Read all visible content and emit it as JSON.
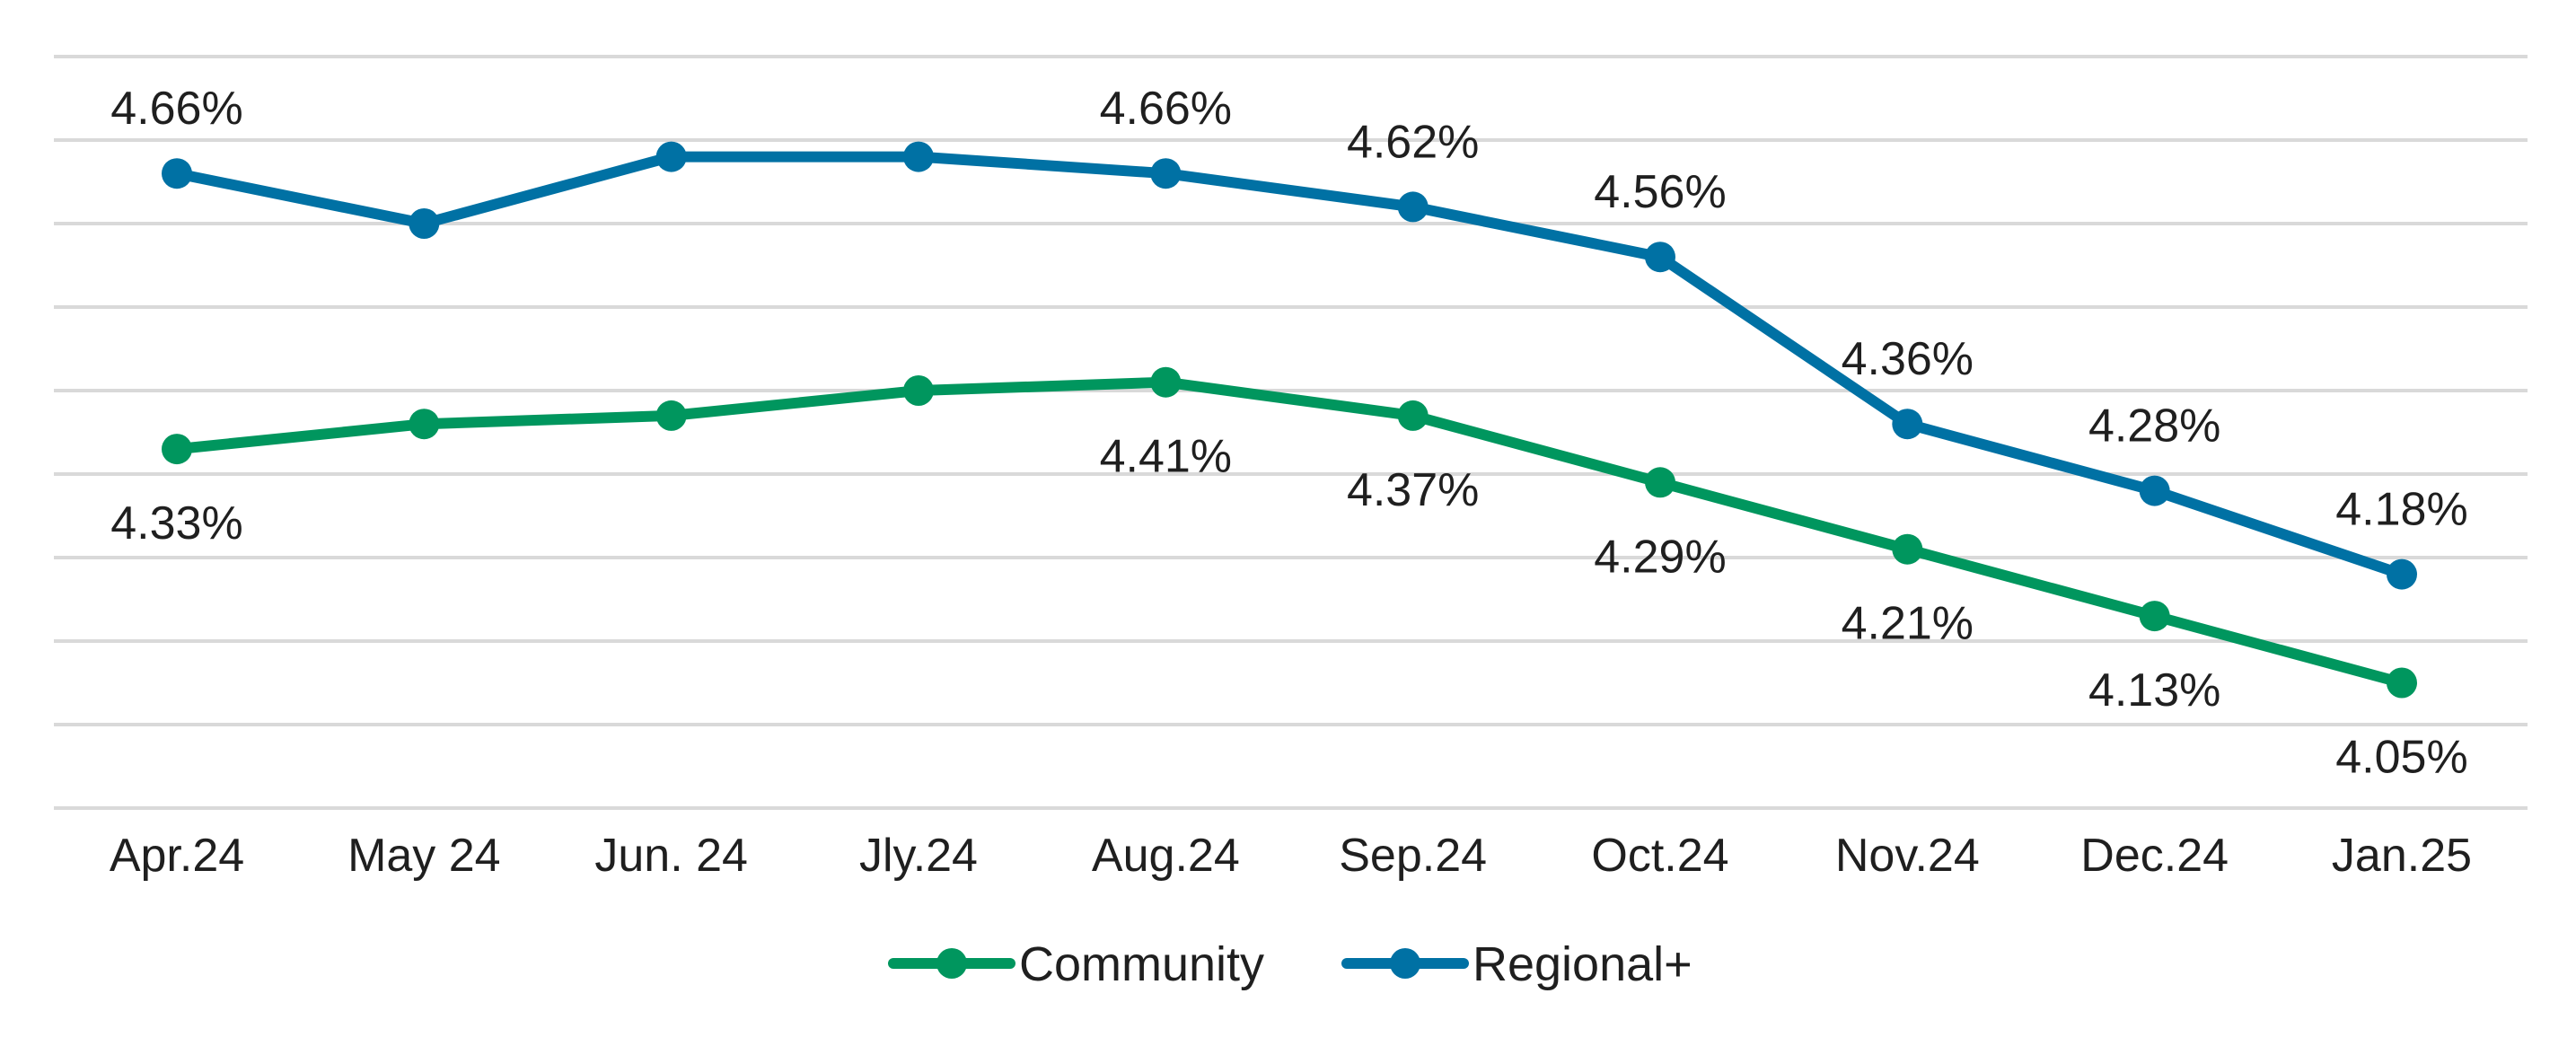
{
  "chart_data": {
    "type": "line",
    "categories": [
      "Apr.24",
      "May 24",
      "Jun. 24",
      "Jly.24",
      "Aug.24",
      "Sep.24",
      "Oct.24",
      "Nov.24",
      "Dec.24",
      "Jan.25"
    ],
    "series": [
      {
        "name": "Community",
        "color": "#00965e",
        "values": [
          4.33,
          4.36,
          4.37,
          4.4,
          4.41,
          4.37,
          4.29,
          4.21,
          4.13,
          4.05
        ],
        "labels": [
          "4.33%",
          null,
          null,
          null,
          "4.41%",
          "4.37%",
          "4.29%",
          "4.21%",
          "4.13%",
          "4.05%"
        ]
      },
      {
        "name": "Regional+",
        "color": "#0071a4",
        "values": [
          4.66,
          4.6,
          4.68,
          4.68,
          4.66,
          4.62,
          4.56,
          4.36,
          4.28,
          4.18
        ],
        "labels": [
          "4.66%",
          null,
          null,
          null,
          "4.66%",
          "4.62%",
          "4.56%",
          "4.36%",
          "4.28%",
          "4.18%"
        ]
      }
    ],
    "ylim": [
      3.9,
      4.8
    ],
    "grid": true,
    "legend_position": "bottom"
  }
}
